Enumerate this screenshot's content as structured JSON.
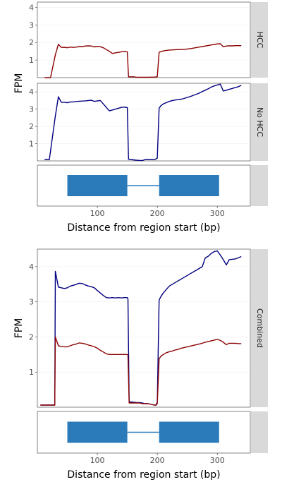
{
  "colors": {
    "hcc": "#8b0000",
    "no_hcc": "#000080",
    "gene": "#2b7bba",
    "strip_bg": "#d9d9d9",
    "frame": "#333333",
    "grid": "#ebebeb",
    "tick_text": "#4d4d4d"
  },
  "chart_data": [
    {
      "type": "line",
      "panel": "HCC",
      "ylabel": "FPM",
      "strip": "HCC",
      "xlim": [
        0,
        355
      ],
      "ylim": [
        0,
        4.3
      ],
      "y_ticks": [
        1,
        2,
        3,
        4
      ],
      "series": [
        {
          "color": "#8b0000",
          "x": [
            12,
            22,
            30,
            35,
            40,
            45,
            50,
            55,
            60,
            65,
            70,
            75,
            80,
            85,
            90,
            95,
            100,
            105,
            110,
            115,
            120,
            125,
            130,
            135,
            140,
            145,
            150,
            152,
            155,
            160,
            165,
            170,
            175,
            180,
            185,
            190,
            195,
            200,
            203,
            206,
            210,
            215,
            220,
            225,
            230,
            235,
            240,
            245,
            250,
            255,
            260,
            265,
            270,
            275,
            280,
            285,
            290,
            295,
            300,
            305,
            310,
            315,
            320,
            325,
            330,
            335,
            340
          ],
          "y": [
            0.0,
            0.0,
            1.3,
            1.9,
            1.72,
            1.73,
            1.7,
            1.74,
            1.72,
            1.74,
            1.77,
            1.77,
            1.8,
            1.81,
            1.8,
            1.75,
            1.78,
            1.76,
            1.7,
            1.6,
            1.5,
            1.38,
            1.41,
            1.44,
            1.47,
            1.49,
            1.47,
            0.05,
            0.05,
            0.05,
            0.03,
            0.02,
            0.02,
            0.02,
            0.02,
            0.03,
            0.03,
            0.05,
            1.45,
            1.48,
            1.52,
            1.55,
            1.57,
            1.58,
            1.59,
            1.6,
            1.6,
            1.61,
            1.63,
            1.65,
            1.68,
            1.71,
            1.74,
            1.77,
            1.8,
            1.83,
            1.86,
            1.89,
            1.92,
            1.93,
            1.76,
            1.8,
            1.81,
            1.81,
            1.82,
            1.82,
            1.82
          ]
        }
      ]
    },
    {
      "type": "line",
      "panel": "No HCC",
      "strip": "No HCC",
      "xlim": [
        0,
        355
      ],
      "ylim": [
        0,
        4.5
      ],
      "y_ticks": [
        1,
        2,
        3,
        4
      ],
      "series": [
        {
          "color": "#000080",
          "x": [
            12,
            20,
            30,
            35,
            40,
            45,
            50,
            55,
            60,
            65,
            70,
            75,
            80,
            85,
            90,
            95,
            100,
            105,
            110,
            115,
            120,
            125,
            130,
            135,
            140,
            145,
            150,
            152,
            155,
            160,
            165,
            170,
            175,
            180,
            185,
            190,
            195,
            200,
            203,
            206,
            210,
            215,
            220,
            225,
            230,
            235,
            240,
            245,
            250,
            255,
            260,
            265,
            270,
            275,
            280,
            285,
            290,
            295,
            300,
            305,
            310,
            315,
            320,
            325,
            330,
            335,
            340
          ],
          "y": [
            0.08,
            0.08,
            2.6,
            3.72,
            3.4,
            3.4,
            3.37,
            3.42,
            3.42,
            3.44,
            3.46,
            3.47,
            3.48,
            3.5,
            3.52,
            3.45,
            3.48,
            3.5,
            3.3,
            3.1,
            2.9,
            2.95,
            3.0,
            3.05,
            3.1,
            3.12,
            3.09,
            0.1,
            0.08,
            0.06,
            0.04,
            0.03,
            0.02,
            0.08,
            0.08,
            0.08,
            0.07,
            0.15,
            3.05,
            3.2,
            3.3,
            3.38,
            3.45,
            3.5,
            3.53,
            3.55,
            3.58,
            3.62,
            3.68,
            3.73,
            3.8,
            3.86,
            3.93,
            4.02,
            4.1,
            4.18,
            4.28,
            4.35,
            4.4,
            4.45,
            4.05,
            4.1,
            4.15,
            4.2,
            4.25,
            4.3,
            4.38
          ]
        }
      ]
    },
    {
      "type": "line",
      "panel": "Combined",
      "ylabel": "FPM",
      "strip": "Combined",
      "xlabel": "Distance from region start (bp)",
      "xlim": [
        0,
        355
      ],
      "ylim": [
        0,
        4.5
      ],
      "y_ticks": [
        1,
        2,
        3,
        4
      ],
      "x_ticks": [
        100,
        200,
        300
      ],
      "series": [
        {
          "color": "#000080",
          "x": [
            5,
            20,
            25,
            29,
            30,
            35,
            40,
            45,
            50,
            55,
            60,
            65,
            70,
            75,
            80,
            85,
            90,
            95,
            100,
            105,
            110,
            115,
            120,
            125,
            130,
            135,
            140,
            145,
            150,
            151,
            153,
            155,
            160,
            165,
            170,
            175,
            180,
            185,
            190,
            195,
            198,
            200,
            203,
            206,
            210,
            215,
            220,
            225,
            230,
            235,
            240,
            245,
            250,
            255,
            260,
            265,
            270,
            275,
            280,
            285,
            290,
            295,
            300,
            305,
            310,
            315,
            320,
            325,
            330,
            335,
            340
          ],
          "y": [
            0.06,
            0.06,
            0.06,
            0.06,
            3.87,
            3.42,
            3.4,
            3.38,
            3.4,
            3.45,
            3.47,
            3.5,
            3.53,
            3.52,
            3.48,
            3.45,
            3.43,
            3.4,
            3.32,
            3.25,
            3.18,
            3.12,
            3.11,
            3.12,
            3.11,
            3.12,
            3.11,
            3.12,
            3.12,
            3.08,
            0.15,
            0.15,
            0.14,
            0.13,
            0.13,
            0.12,
            0.1,
            0.1,
            0.08,
            0.06,
            0.06,
            0.15,
            3.05,
            3.15,
            3.25,
            3.35,
            3.45,
            3.5,
            3.55,
            3.6,
            3.65,
            3.7,
            3.75,
            3.8,
            3.85,
            3.9,
            3.95,
            4.0,
            4.25,
            4.3,
            4.38,
            4.43,
            4.45,
            4.33,
            4.2,
            4.05,
            4.2,
            4.21,
            4.22,
            4.25,
            4.29
          ]
        },
        {
          "color": "#8b0000",
          "x": [
            5,
            20,
            25,
            29,
            30,
            35,
            40,
            45,
            50,
            55,
            60,
            65,
            70,
            75,
            80,
            85,
            90,
            95,
            100,
            105,
            110,
            115,
            120,
            125,
            130,
            135,
            140,
            145,
            150,
            151,
            153,
            155,
            160,
            165,
            170,
            175,
            180,
            185,
            190,
            195,
            198,
            200,
            203,
            206,
            210,
            215,
            220,
            225,
            230,
            235,
            240,
            245,
            250,
            255,
            260,
            265,
            270,
            275,
            280,
            285,
            290,
            295,
            300,
            305,
            310,
            315,
            320,
            325,
            330,
            335,
            340
          ],
          "y": [
            0.06,
            0.06,
            0.06,
            0.06,
            2.0,
            1.75,
            1.73,
            1.72,
            1.72,
            1.75,
            1.78,
            1.8,
            1.83,
            1.82,
            1.8,
            1.77,
            1.75,
            1.72,
            1.68,
            1.62,
            1.57,
            1.52,
            1.5,
            1.5,
            1.5,
            1.5,
            1.5,
            1.5,
            1.5,
            1.48,
            0.12,
            0.12,
            0.12,
            0.12,
            0.12,
            0.1,
            0.1,
            0.1,
            0.08,
            0.06,
            0.06,
            0.1,
            1.38,
            1.45,
            1.5,
            1.55,
            1.58,
            1.6,
            1.63,
            1.65,
            1.68,
            1.7,
            1.72,
            1.74,
            1.76,
            1.78,
            1.8,
            1.82,
            1.85,
            1.87,
            1.89,
            1.91,
            1.93,
            1.9,
            1.85,
            1.78,
            1.82,
            1.82,
            1.82,
            1.81,
            1.81
          ]
        }
      ]
    }
  ],
  "gene_model": {
    "exons": [
      [
        50,
        150
      ],
      [
        203,
        303
      ]
    ],
    "intron": [
      150,
      203
    ],
    "x_ticks": [
      100,
      200,
      300
    ],
    "xlabel": "Distance from region start (bp)"
  }
}
